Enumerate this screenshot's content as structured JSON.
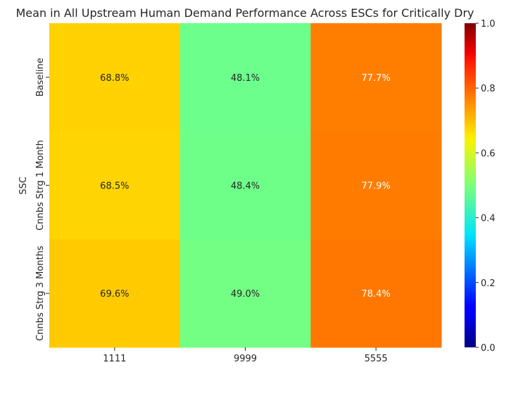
{
  "chart_data": {
    "type": "heatmap",
    "title": "Mean in All Upstream Human Demand Performance Across ESCs for Critically Dry",
    "xlabel": "",
    "ylabel": "SSC",
    "x_categories": [
      "1111",
      "9999",
      "5555"
    ],
    "y_categories": [
      "Baseline",
      "Cnnbs Strg 1 Month",
      "Cnnbs Strg 3 Months"
    ],
    "values": [
      [
        0.688,
        0.481,
        0.777
      ],
      [
        0.685,
        0.484,
        0.779
      ],
      [
        0.696,
        0.49,
        0.784
      ]
    ],
    "annotations": [
      [
        "68.8%",
        "48.1%",
        "77.7%"
      ],
      [
        "68.5%",
        "48.4%",
        "77.9%"
      ],
      [
        "69.6%",
        "49.0%",
        "78.4%"
      ]
    ],
    "colormap": "jet",
    "colorbar": {
      "range": [
        0.0,
        1.0
      ],
      "ticks": [
        0.0,
        0.2,
        0.4,
        0.6,
        0.8,
        1.0
      ],
      "tick_labels": [
        "0.0",
        "0.2",
        "0.4",
        "0.6",
        "0.8",
        "1.0"
      ]
    }
  }
}
